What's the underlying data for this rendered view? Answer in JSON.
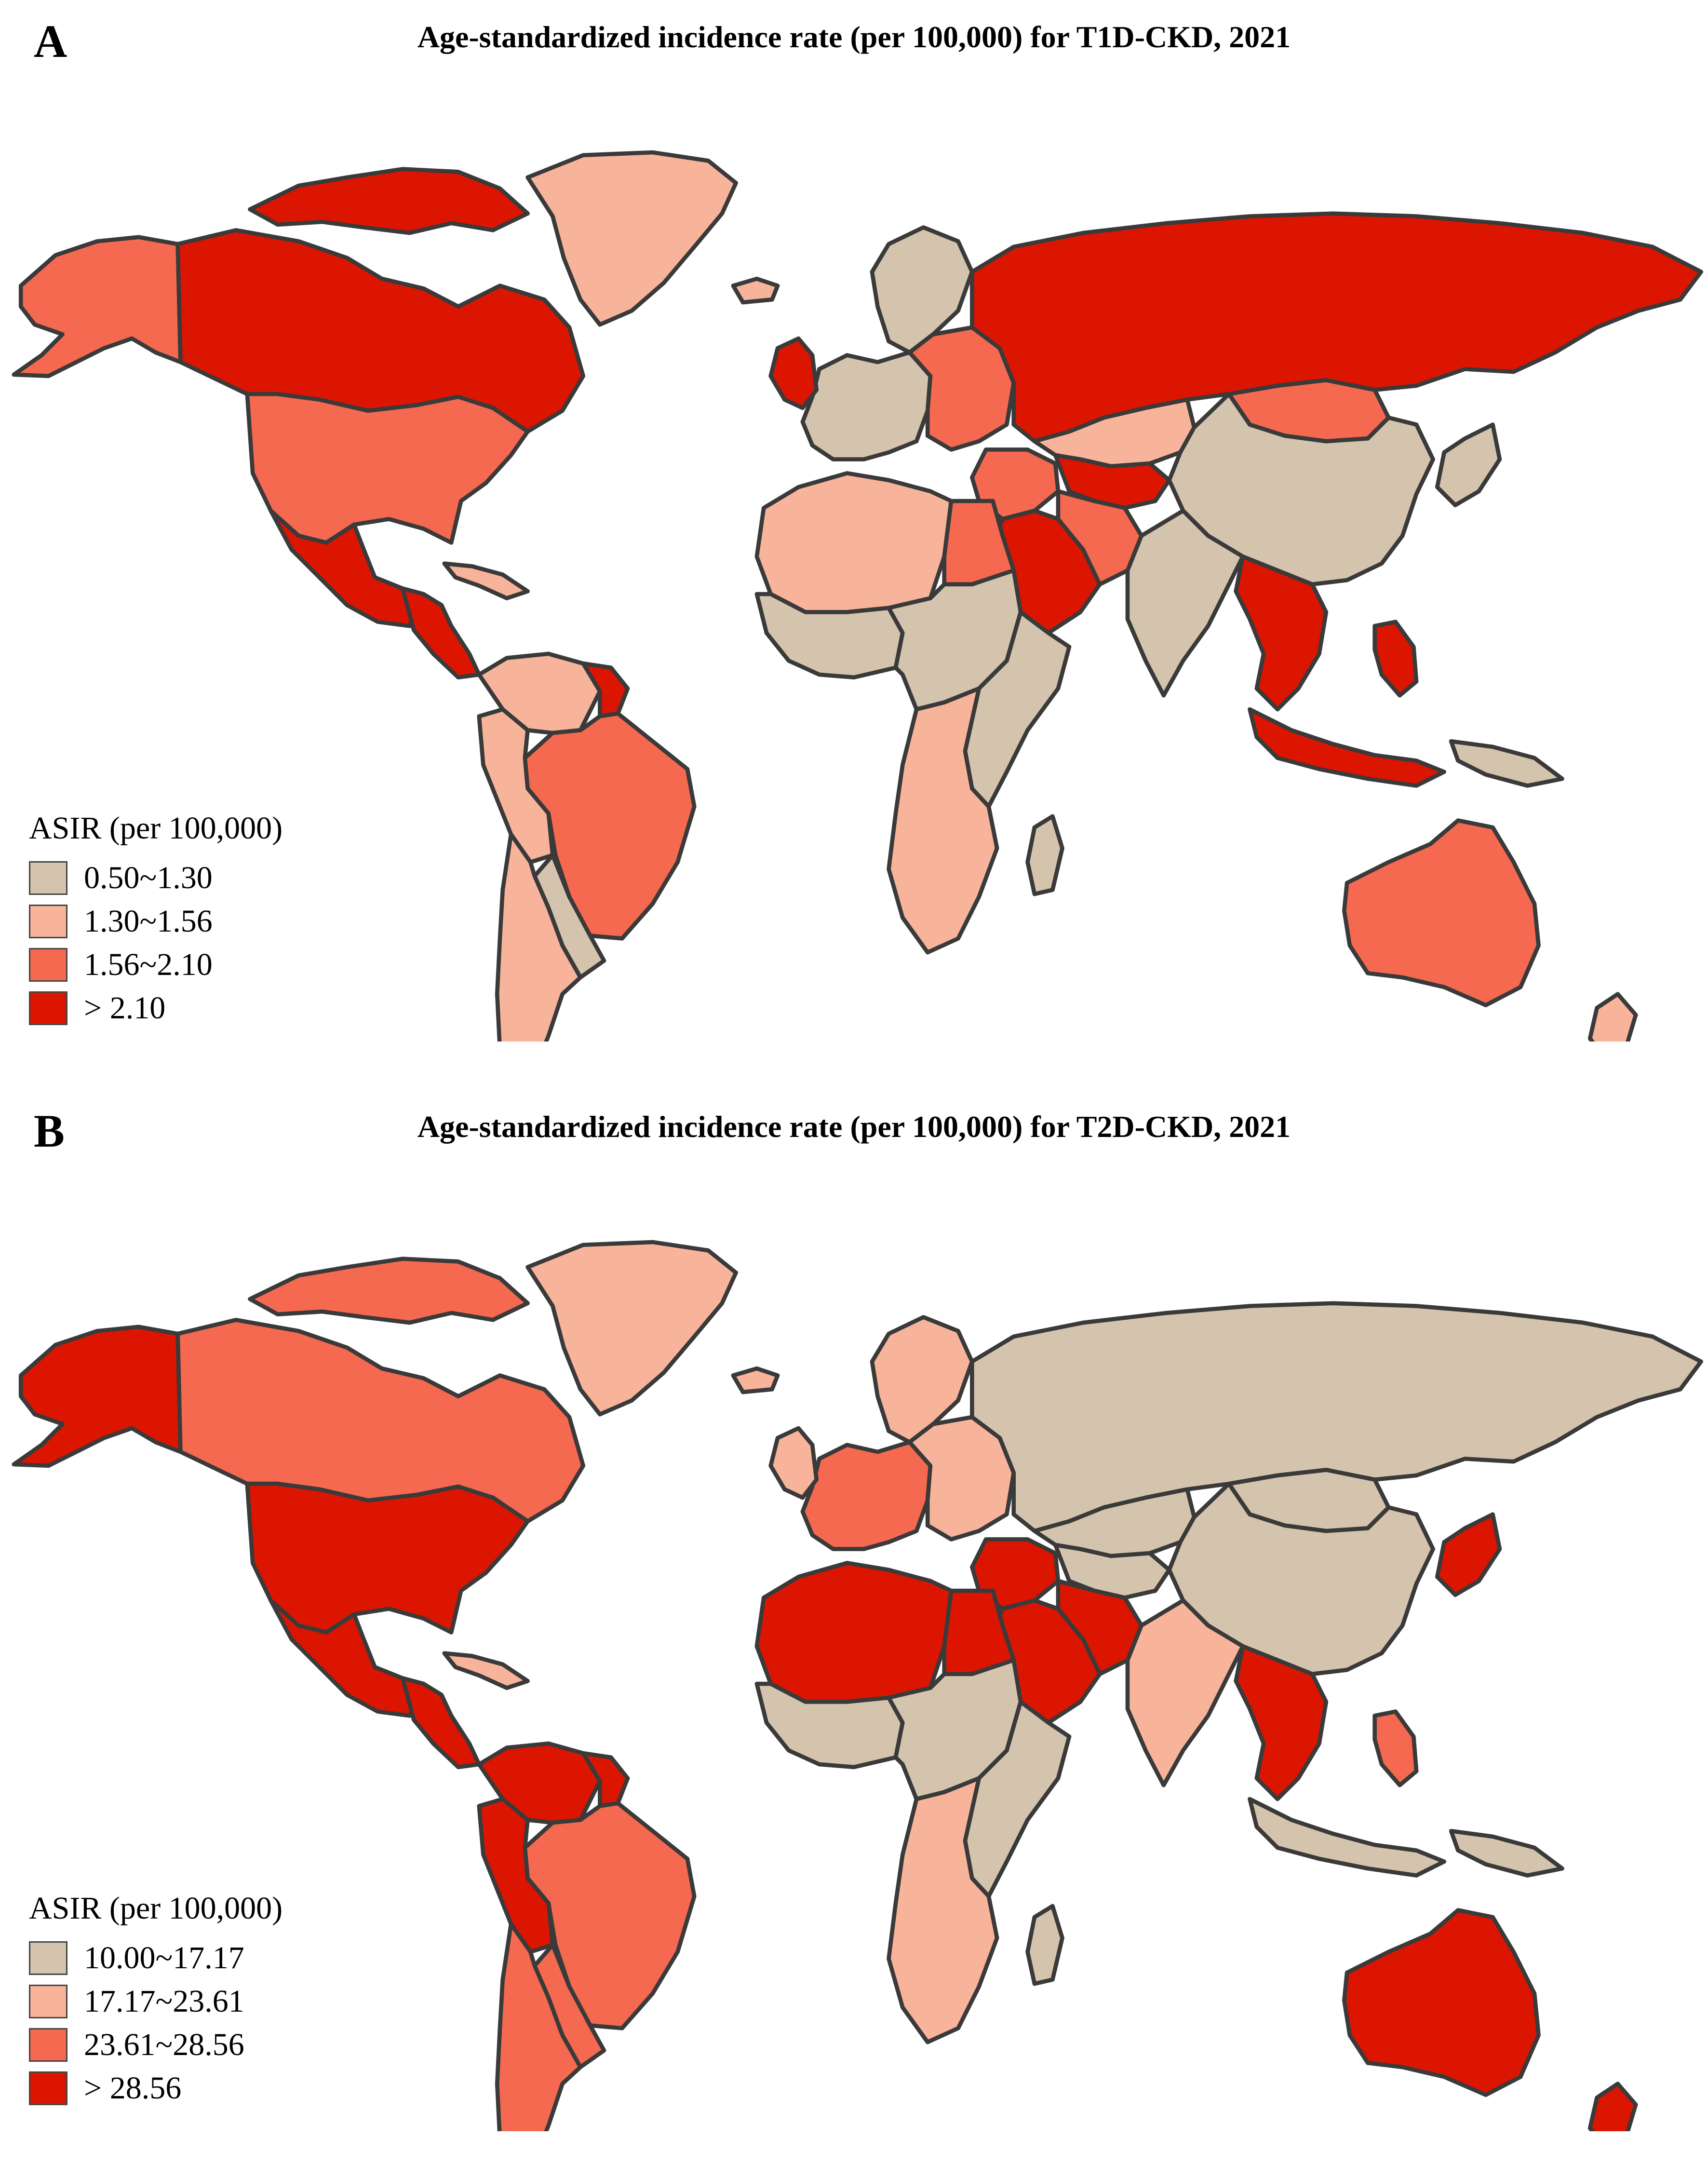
{
  "colors": {
    "c1": "#d5c4ad",
    "c2": "#f7b49b",
    "c3": "#f4694f",
    "c4": "#dc1500",
    "nodata": "#7f7f7f"
  },
  "panels": [
    {
      "letter": "A",
      "title": "Age-standardized incidence rate (per 100,000) for T1D-CKD, 2021",
      "legend_title": "ASIR (per 100,000)",
      "legend": [
        "0.50~1.30",
        "1.30~1.56",
        "1.56~2.10",
        "> 2.10"
      ],
      "regions": {
        "alaska": "c3",
        "canada": "c4",
        "arctic_islands": "c4",
        "greenland": "c2",
        "iceland": "c2",
        "usa": "c3",
        "mexico": "c4",
        "central_america": "c4",
        "caribbean": "c2",
        "colombia_venezuela": "c2",
        "guianas": "c4",
        "brazil": "c3",
        "peru_bolivia": "c2",
        "paraguay_uruguay": "c1",
        "argentina_chile": "c2",
        "scandinavia": "c1",
        "western_europe": "c1",
        "eastern_europe": "c3",
        "uk_ireland": "c4",
        "russia": "c4",
        "kazakhstan": "c2",
        "central_asia": "c4",
        "mongolia": "c3",
        "china": "c1",
        "japan_korea": "c1",
        "middle_east": "c3",
        "arabia": "c4",
        "iran": "c3",
        "india": "c1",
        "southeast_asia": "c4",
        "indonesia": "c4",
        "new_guinea": "c1",
        "philippines": "c4",
        "north_africa": "c2",
        "egypt": "c3",
        "west_africa": "c1",
        "central_africa": "c1",
        "east_africa": "c1",
        "southern_africa": "c2",
        "madagascar": "c1",
        "australia": "c3",
        "new_zealand": "c2"
      }
    },
    {
      "letter": "B",
      "title": "Age-standardized incidence rate (per 100,000) for T2D-CKD, 2021",
      "legend_title": "ASIR (per 100,000)",
      "legend": [
        "10.00~17.17",
        "17.17~23.61",
        "23.61~28.56",
        "> 28.56"
      ],
      "regions": {
        "alaska": "c4",
        "canada": "c3",
        "arctic_islands": "c3",
        "greenland": "c2",
        "iceland": "c2",
        "usa": "c4",
        "mexico": "c4",
        "central_america": "c4",
        "caribbean": "c2",
        "colombia_venezuela": "c4",
        "guianas": "c4",
        "brazil": "c3",
        "peru_bolivia": "c4",
        "paraguay_uruguay": "c3",
        "argentina_chile": "c3",
        "scandinavia": "c2",
        "western_europe": "c3",
        "eastern_europe": "c2",
        "uk_ireland": "c2",
        "russia": "c1",
        "kazakhstan": "c1",
        "central_asia": "c1",
        "mongolia": "c1",
        "china": "c1",
        "japan_korea": "c4",
        "middle_east": "c4",
        "arabia": "c4",
        "iran": "c4",
        "india": "c2",
        "southeast_asia": "c4",
        "indonesia": "c1",
        "new_guinea": "c1",
        "philippines": "c3",
        "north_africa": "c4",
        "egypt": "c4",
        "west_africa": "c1",
        "central_africa": "c1",
        "east_africa": "c1",
        "southern_africa": "c2",
        "madagascar": "c1",
        "australia": "c4",
        "new_zealand": "c4"
      }
    }
  ]
}
